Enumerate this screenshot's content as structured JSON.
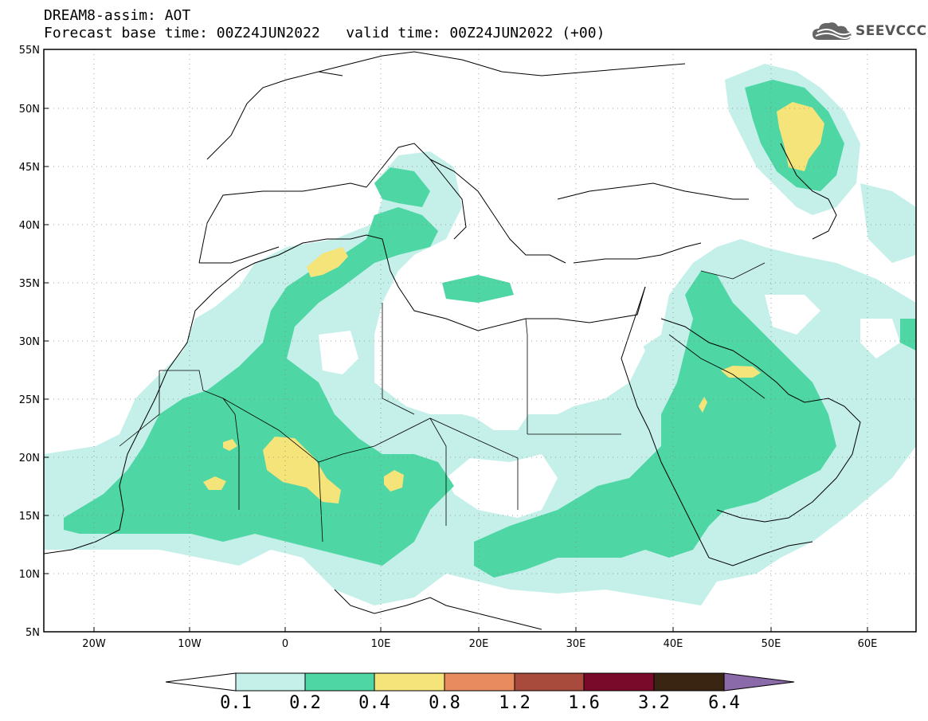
{
  "title": {
    "line1": "DREAM8-assim: AOT",
    "line2_base": "Forecast base time: 00Z24JUN2022",
    "line2_valid": "valid time: 00Z24JUN2022 (+00)"
  },
  "logo": {
    "text": "SEEVCCC",
    "icon": "cloud-icon"
  },
  "map": {
    "lon_range": [
      -25,
      65
    ],
    "lat_range": [
      5,
      55
    ],
    "lat_labels": [
      "5N",
      "10N",
      "15N",
      "20N",
      "25N",
      "30N",
      "35N",
      "40N",
      "45N",
      "50N",
      "55N"
    ],
    "lon_labels": [
      "20W",
      "10W",
      "0",
      "10E",
      "20E",
      "30E",
      "40E",
      "50E",
      "60E"
    ],
    "gridlines": "dotted"
  },
  "colorbar": {
    "levels": [
      "0.1",
      "0.2",
      "0.4",
      "0.8",
      "1.2",
      "1.6",
      "3.2",
      "6.4"
    ],
    "colors": [
      "#ffffff",
      "#c5f0ea",
      "#4ed6a5",
      "#f4e47a",
      "#e88c60",
      "#a84a3c",
      "#7a0a2a",
      "#3a2412",
      "#8a6aa8"
    ]
  },
  "colors": {
    "aot_0_1": "#c5f0ea",
    "aot_0_2": "#4ed6a5",
    "aot_0_4": "#f4e47a"
  }
}
